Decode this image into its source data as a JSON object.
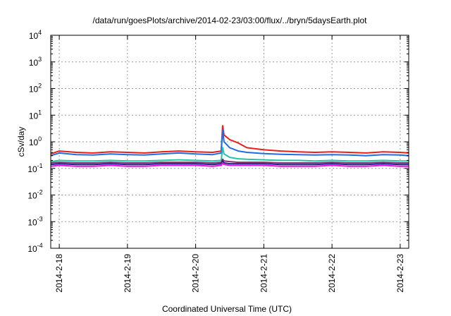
{
  "chart_data": {
    "type": "line",
    "title": "/data/run/goesPlots/archive/2014-02-23/03:00/flux/../bryn/5daysEarth.plot",
    "xlabel": "Coordinated Universal Time (UTC)",
    "ylabel": "cSv/day",
    "y_scale": "log",
    "ylim": [
      0.0001,
      10000
    ],
    "y_ticks": [
      {
        "value": 0.0001,
        "base": "10",
        "exp": "-4"
      },
      {
        "value": 0.001,
        "base": "10",
        "exp": "-3"
      },
      {
        "value": 0.01,
        "base": "10",
        "exp": "-2"
      },
      {
        "value": 0.1,
        "base": "10",
        "exp": "-1"
      },
      {
        "value": 1,
        "base": "10",
        "exp": "0"
      },
      {
        "value": 10,
        "base": "10",
        "exp": "1"
      },
      {
        "value": 100,
        "base": "10",
        "exp": "2"
      },
      {
        "value": 1000,
        "base": "10",
        "exp": "3"
      },
      {
        "value": 10000,
        "base": "10",
        "exp": "4"
      }
    ],
    "xlim": [
      "2014-02-17T21:00",
      "2014-02-23T03:00"
    ],
    "x_tick_labels": [
      "2014-2-18",
      "2014-2-19",
      "2014-2-20",
      "2014-2-21",
      "2014-2-22",
      "2014-2-23"
    ],
    "x_tick_dates": [
      "2014-02-18T00:00",
      "2014-02-19T00:00",
      "2014-02-20T00:00",
      "2014-02-21T00:00",
      "2014-02-22T00:00",
      "2014-02-23T00:00"
    ],
    "grid": true,
    "x": [
      "2014-02-17T21:00",
      "2014-02-18T00:00",
      "2014-02-18T06:00",
      "2014-02-18T12:00",
      "2014-02-18T18:00",
      "2014-02-19T00:00",
      "2014-02-19T06:00",
      "2014-02-19T12:00",
      "2014-02-19T18:00",
      "2014-02-20T00:00",
      "2014-02-20T06:00",
      "2014-02-20T09:00",
      "2014-02-20T09:30",
      "2014-02-20T10:00",
      "2014-02-20T12:00",
      "2014-02-20T15:00",
      "2014-02-20T18:00",
      "2014-02-21T00:00",
      "2014-02-21T06:00",
      "2014-02-21T12:00",
      "2014-02-21T18:00",
      "2014-02-22T00:00",
      "2014-02-22T06:00",
      "2014-02-22T12:00",
      "2014-02-22T18:00",
      "2014-02-23T00:00",
      "2014-02-23T03:00"
    ],
    "series": [
      {
        "color": "#e8201a",
        "values": [
          0.35,
          0.45,
          0.4,
          0.38,
          0.42,
          0.4,
          0.38,
          0.42,
          0.45,
          0.42,
          0.4,
          0.45,
          4.0,
          1.8,
          1.2,
          0.9,
          0.6,
          0.5,
          0.45,
          0.42,
          0.4,
          0.42,
          0.4,
          0.38,
          0.42,
          0.4,
          0.38
        ]
      },
      {
        "color": "#1f6fe0",
        "values": [
          0.3,
          0.38,
          0.33,
          0.32,
          0.35,
          0.33,
          0.32,
          0.35,
          0.38,
          0.35,
          0.33,
          0.38,
          2.8,
          1.0,
          0.6,
          0.45,
          0.4,
          0.36,
          0.34,
          0.33,
          0.32,
          0.33,
          0.32,
          0.3,
          0.33,
          0.32,
          0.3
        ]
      },
      {
        "color": "#22c4a8",
        "values": [
          0.18,
          0.2,
          0.19,
          0.19,
          0.2,
          0.19,
          0.19,
          0.2,
          0.21,
          0.2,
          0.19,
          0.2,
          0.6,
          0.35,
          0.26,
          0.23,
          0.22,
          0.21,
          0.2,
          0.2,
          0.19,
          0.2,
          0.19,
          0.19,
          0.2,
          0.19,
          0.19
        ]
      },
      {
        "color": "#8a2b6e",
        "values": [
          0.16,
          0.17,
          0.16,
          0.16,
          0.17,
          0.16,
          0.16,
          0.17,
          0.17,
          0.17,
          0.16,
          0.17,
          0.22,
          0.19,
          0.18,
          0.17,
          0.17,
          0.17,
          0.16,
          0.16,
          0.16,
          0.17,
          0.16,
          0.16,
          0.17,
          0.16,
          0.16
        ]
      },
      {
        "color": "#1a2a8c",
        "values": [
          0.14,
          0.15,
          0.14,
          0.14,
          0.15,
          0.14,
          0.14,
          0.15,
          0.15,
          0.15,
          0.14,
          0.15,
          0.19,
          0.16,
          0.15,
          0.15,
          0.15,
          0.15,
          0.14,
          0.14,
          0.14,
          0.15,
          0.14,
          0.14,
          0.15,
          0.14,
          0.14
        ]
      },
      {
        "color": "#ee10e0",
        "values": [
          0.12,
          0.13,
          0.12,
          0.12,
          0.13,
          0.12,
          0.12,
          0.13,
          0.13,
          0.13,
          0.12,
          0.13,
          0.16,
          0.14,
          0.13,
          0.13,
          0.13,
          0.13,
          0.12,
          0.12,
          0.12,
          0.13,
          0.12,
          0.12,
          0.13,
          0.12,
          0.12
        ]
      }
    ],
    "colors": {
      "grid": "#9a9a9a",
      "axis": "#000000"
    }
  }
}
